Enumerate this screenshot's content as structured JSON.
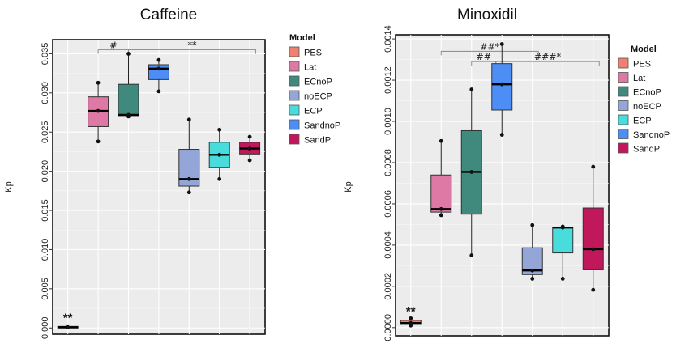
{
  "legend": {
    "title": "Model",
    "entries": [
      "PES",
      "Lat",
      "ECnoP",
      "noECP",
      "ECP",
      "SandnoP",
      "SandP"
    ],
    "colors": [
      "#f08070",
      "#de79a5",
      "#3f8a7c",
      "#94a5d8",
      "#48dcdc",
      "#4c8ef5",
      "#c0185b"
    ]
  },
  "chart_data": [
    {
      "type": "box",
      "title": "Caffeine",
      "ylabel": "Kp",
      "xlabel": "",
      "ylim": [
        -0.0008,
        0.0368
      ],
      "yticks": [
        0.0,
        0.005,
        0.01,
        0.015,
        0.02,
        0.025,
        0.03,
        0.035
      ],
      "ytick_labels": [
        "0.000",
        "0.005",
        "0.010",
        "0.015",
        "0.020",
        "0.025",
        "0.030",
        "0.035"
      ],
      "grid": true,
      "legend_position": "right",
      "categories": [
        "PES",
        "Lat",
        "ECnoP",
        "noECP",
        "ECP",
        "SandnoP",
        "SandP"
      ],
      "boxes": [
        {
          "name": "PES",
          "whisker_low": 0.0,
          "q1": 0.0,
          "median": 0.0001,
          "q3": 0.0002,
          "whisker_high": 0.0002,
          "points": [
            0.0001
          ]
        },
        {
          "name": "Lat",
          "whisker_low": 0.0238,
          "q1": 0.0257,
          "median": 0.0277,
          "q3": 0.0295,
          "whisker_high": 0.0313,
          "points": [
            0.0238,
            0.0277,
            0.0313
          ]
        },
        {
          "name": "ECnoP",
          "whisker_low": 0.027,
          "q1": 0.0271,
          "median": 0.0272,
          "q3": 0.0311,
          "whisker_high": 0.035,
          "points": [
            0.027,
            0.0272,
            0.035
          ]
        },
        {
          "name": "SandnoP",
          "whisker_low": 0.0302,
          "q1": 0.0317,
          "median": 0.0331,
          "q3": 0.0336,
          "whisker_high": 0.0342,
          "points": [
            0.0302,
            0.0331,
            0.0342
          ]
        },
        {
          "name": "noECP",
          "whisker_low": 0.0173,
          "q1": 0.0181,
          "median": 0.019,
          "q3": 0.0228,
          "whisker_high": 0.0266,
          "points": [
            0.0173,
            0.019,
            0.0266
          ]
        },
        {
          "name": "ECP",
          "whisker_low": 0.019,
          "q1": 0.0205,
          "median": 0.0221,
          "q3": 0.0237,
          "whisker_high": 0.0253,
          "points": [
            0.019,
            0.0221,
            0.0253
          ]
        },
        {
          "name": "SandP",
          "whisker_low": 0.0214,
          "q1": 0.0222,
          "median": 0.0229,
          "q3": 0.0237,
          "whisker_high": 0.0244,
          "points": [
            0.0214,
            0.0229,
            0.0244
          ]
        }
      ],
      "annotations": [
        {
          "text": "#",
          "x_from": 1.5,
          "x_to": 2.5,
          "y": 0.0355,
          "bracket": true
        },
        {
          "text": "**",
          "x_from": 2.5,
          "x_to": 6.7,
          "y": 0.0355,
          "bracket": true
        },
        {
          "text": "**",
          "x": 0.5,
          "y": 0.0003,
          "bracket": false
        }
      ]
    },
    {
      "type": "box",
      "title": "Minoxidil",
      "ylabel": "Kp",
      "xlabel": "",
      "ylim": [
        -4e-05,
        0.00142
      ],
      "yticks": [
        0.0,
        0.0002,
        0.0004,
        0.0006,
        0.0008,
        0.001,
        0.0012,
        0.0014
      ],
      "ytick_labels": [
        "0.0000",
        "0.0002",
        "0.0004",
        "0.0006",
        "0.0008",
        "0.0010",
        "0.0012",
        "0.0014"
      ],
      "grid": true,
      "legend_position": "right",
      "categories": [
        "PES",
        "Lat",
        "ECnoP",
        "SandnoP",
        "noECP",
        "ECP",
        "SandP"
      ],
      "boxes": [
        {
          "name": "PES",
          "whisker_low": 1e-05,
          "q1": 1.5e-05,
          "median": 2.2e-05,
          "q3": 3.5e-05,
          "whisker_high": 4.5e-05,
          "points": [
            1e-05,
            2.2e-05,
            4.5e-05
          ]
        },
        {
          "name": "Lat",
          "whisker_low": 0.000545,
          "q1": 0.00056,
          "median": 0.000575,
          "q3": 0.00074,
          "whisker_high": 0.000905,
          "points": [
            0.000545,
            0.000575,
            0.000905
          ]
        },
        {
          "name": "ECnoP",
          "whisker_low": 0.00035,
          "q1": 0.00055,
          "median": 0.000755,
          "q3": 0.000955,
          "whisker_high": 0.001155,
          "points": [
            0.00035,
            0.000755,
            0.001155
          ]
        },
        {
          "name": "SandnoP",
          "whisker_low": 0.000935,
          "q1": 0.001055,
          "median": 0.00118,
          "q3": 0.00128,
          "whisker_high": 0.001375,
          "points": [
            0.000935,
            0.00118,
            0.001375
          ]
        },
        {
          "name": "noECP",
          "whisker_low": 0.000237,
          "q1": 0.000257,
          "median": 0.000277,
          "q3": 0.000387,
          "whisker_high": 0.000497,
          "points": [
            0.000237,
            0.000277,
            0.000497
          ]
        },
        {
          "name": "ECP",
          "whisker_low": 0.000237,
          "q1": 0.000362,
          "median": 0.000485,
          "q3": 0.000487,
          "whisker_high": 0.00049,
          "points": [
            0.000237,
            0.000485,
            0.00049
          ]
        },
        {
          "name": "SandP",
          "whisker_low": 0.000183,
          "q1": 0.00028,
          "median": 0.00038,
          "q3": 0.00058,
          "whisker_high": 0.00078,
          "points": [
            0.000183,
            0.00038,
            0.00078
          ]
        }
      ],
      "annotations": [
        {
          "text": "##*",
          "x_from": 1.5,
          "x_to": 4.7,
          "y": 0.00134,
          "bracket": true
        },
        {
          "text": "##",
          "x_from": 2.5,
          "x_to": 3.3,
          "y": 0.00129,
          "bracket": true
        },
        {
          "text": "###*",
          "x_from": 3.3,
          "x_to": 6.7,
          "y": 0.00129,
          "bracket": true
        },
        {
          "text": "**",
          "x": 0.5,
          "y": 4e-05,
          "bracket": false
        }
      ]
    }
  ]
}
